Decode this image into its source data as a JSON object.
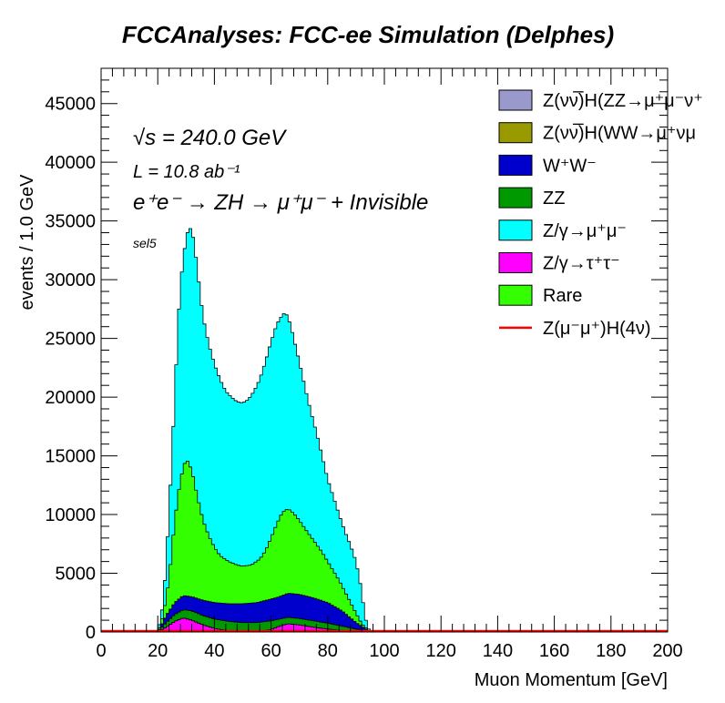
{
  "chart_data": {
    "type": "area",
    "title": "FCCAnalyses: FCC-ee Simulation (Delphes)",
    "xlabel": "Muon Momentum [GeV]",
    "ylabel": "events / 1.0 GeV",
    "xlim": [
      0,
      200
    ],
    "ylim": [
      0,
      48000
    ],
    "x_ticks": [
      "0",
      "20",
      "40",
      "60",
      "80",
      "100",
      "120",
      "140",
      "160",
      "180",
      "200"
    ],
    "y_ticks": [
      "0",
      "5000",
      "10000",
      "15000",
      "20000",
      "25000",
      "30000",
      "35000",
      "40000",
      "45000"
    ],
    "annotations": {
      "sqrt_s": "√s = 240.0 GeV",
      "lumi": "L = 10.8 ab⁻¹",
      "process": "e⁺e⁻ → ZH → μ⁺μ⁻ + Invisible",
      "selection": "sel5"
    },
    "legend_position": "top-right",
    "legend": [
      {
        "label": "Z(νν̅)H(ZZ→μ⁺μ⁻ν⁺",
        "color": "#9999cc",
        "style": "box"
      },
      {
        "label": "Z(νν̅)H(WW→μ⁺νμ",
        "color": "#999900",
        "style": "box"
      },
      {
        "label": "W⁺W⁻",
        "color": "#0000cc",
        "style": "box"
      },
      {
        "label": "ZZ",
        "color": "#009900",
        "style": "box"
      },
      {
        "label": "Z/γ→μ⁺μ⁻",
        "color": "#00ffff",
        "style": "box"
      },
      {
        "label": "Z/γ→τ⁺τ⁻",
        "color": "#ff00ff",
        "style": "box"
      },
      {
        "label": "Rare",
        "color": "#33ff00",
        "style": "box"
      },
      {
        "label": "Z(μ⁻μ⁺)H(4ν)",
        "color": "#ff0000",
        "style": "line"
      }
    ],
    "bin_width": 1,
    "bin_edges_range": [
      20,
      95
    ],
    "cumulative_stacks": [
      {
        "name": "Z/γ→τ⁺τ⁻",
        "color": "#ff00ff",
        "x": [
          20,
          23,
          26,
          29,
          32,
          36,
          40,
          45,
          50,
          55,
          60,
          63,
          66,
          70,
          75,
          80,
          85,
          90,
          95
        ],
        "y": [
          0,
          400,
          900,
          1200,
          1000,
          600,
          300,
          100,
          50,
          50,
          200,
          500,
          700,
          600,
          400,
          250,
          120,
          40,
          0
        ]
      },
      {
        "name": "ZZ",
        "color": "#009900",
        "x": [
          20,
          23,
          26,
          29,
          32,
          36,
          40,
          45,
          50,
          55,
          60,
          63,
          66,
          70,
          75,
          80,
          85,
          90,
          95
        ],
        "y": [
          0,
          800,
          1500,
          1900,
          1800,
          1400,
          1100,
          900,
          800,
          800,
          950,
          1100,
          1250,
          1150,
          950,
          750,
          500,
          250,
          0
        ]
      },
      {
        "name": "W⁺W⁻",
        "color": "#0000cc",
        "x": [
          20,
          23,
          26,
          29,
          32,
          36,
          40,
          45,
          50,
          55,
          60,
          63,
          66,
          70,
          75,
          80,
          85,
          90,
          95
        ],
        "y": [
          0,
          1400,
          2500,
          3100,
          3000,
          2700,
          2500,
          2400,
          2400,
          2500,
          2800,
          3000,
          3300,
          3200,
          2900,
          2500,
          1800,
          800,
          0
        ]
      },
      {
        "name": "Rare",
        "color": "#33ff00",
        "x": [
          20,
          22,
          24,
          26,
          28,
          30,
          32,
          34,
          36,
          38,
          40,
          42,
          45,
          48,
          50,
          53,
          56,
          58,
          60,
          62,
          64,
          66,
          68,
          70,
          72,
          75,
          78,
          81,
          84,
          87,
          90,
          92,
          95
        ],
        "y": [
          0,
          1500,
          4500,
          9500,
          13000,
          14800,
          13800,
          11500,
          9500,
          8200,
          7200,
          6500,
          6000,
          5700,
          5600,
          5700,
          6200,
          6900,
          8000,
          9200,
          10200,
          10500,
          10100,
          9500,
          8800,
          7800,
          6800,
          5600,
          4400,
          3000,
          1600,
          700,
          0
        ]
      },
      {
        "name": "Z/γ→μ⁺μ⁻",
        "color": "#00ffff",
        "x": [
          20,
          22,
          24,
          26,
          27,
          28,
          29,
          30,
          31,
          32,
          33,
          34,
          35,
          36,
          38,
          40,
          42,
          44,
          46,
          48,
          50,
          52,
          54,
          56,
          58,
          60,
          62,
          64,
          65,
          66,
          67,
          68,
          70,
          72,
          74,
          76,
          78,
          80,
          82,
          84,
          86,
          88,
          90,
          92,
          93,
          94,
          95
        ],
        "y": [
          0,
          2500,
          10000,
          20000,
          25500,
          29500,
          31800,
          33500,
          34500,
          34200,
          33000,
          30800,
          28800,
          26800,
          24500,
          22800,
          21500,
          20500,
          20000,
          19600,
          19500,
          19800,
          20500,
          21500,
          23000,
          24700,
          26200,
          27000,
          27200,
          26800,
          26000,
          25000,
          23000,
          20800,
          18800,
          17000,
          15000,
          13000,
          11500,
          10000,
          8600,
          7400,
          6000,
          3500,
          1500,
          500,
          0
        ]
      }
    ],
    "signal_line": {
      "name": "Z(μ⁻μ⁺)H(4ν)",
      "color": "#ff0000",
      "x": [
        0,
        200
      ],
      "y": [
        0,
        0
      ]
    }
  }
}
